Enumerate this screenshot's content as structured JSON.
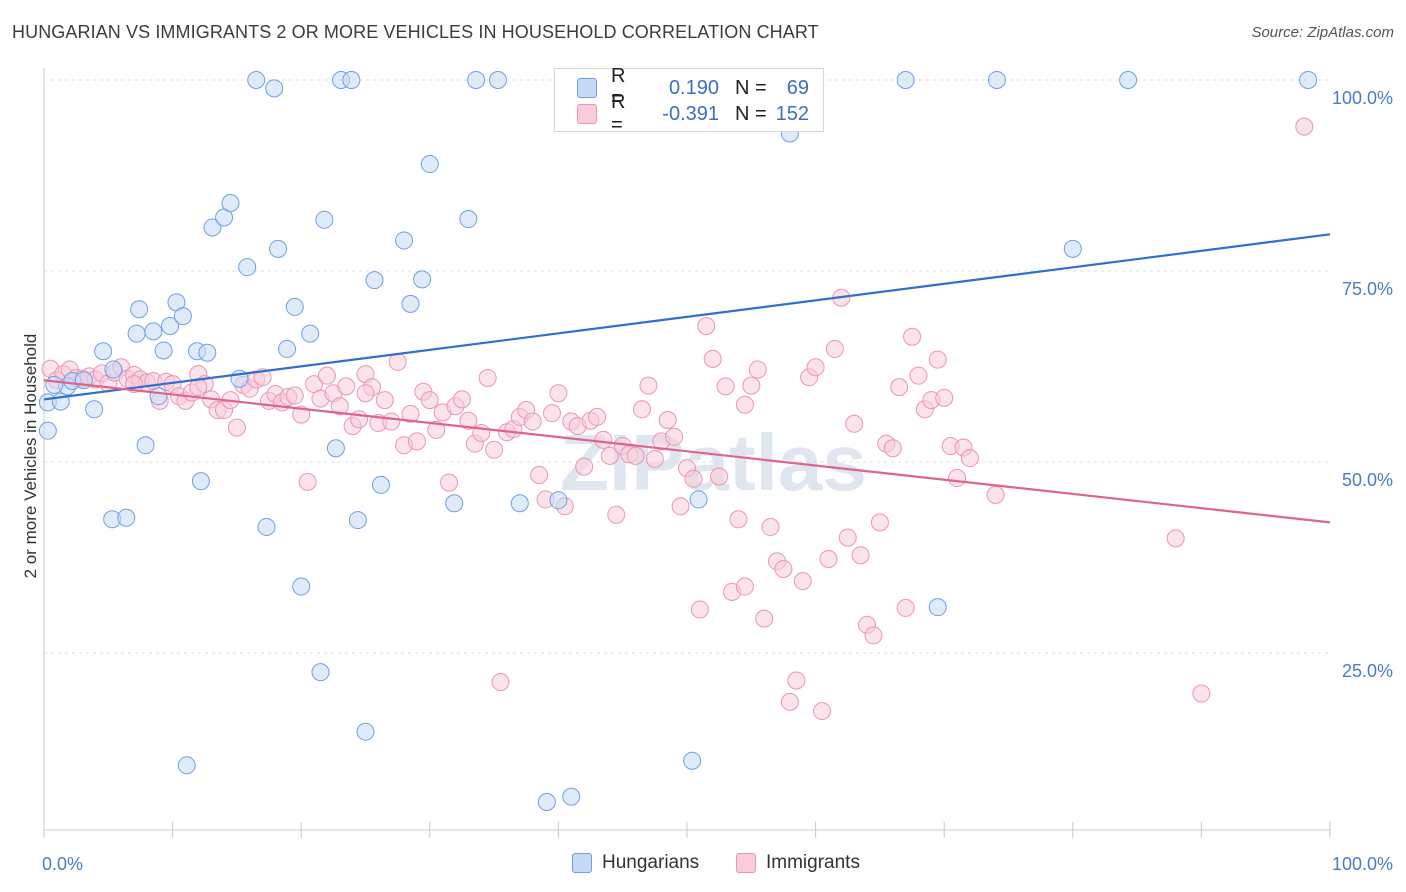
{
  "title": "HUNGARIAN VS IMMIGRANTS 2 OR MORE VEHICLES IN HOUSEHOLD CORRELATION CHART",
  "source": "Source: ZipAtlas.com",
  "watermark": "ZIPatlas",
  "colors": {
    "blue": "#6fa0e4",
    "blue_fill": "#c6daf5",
    "blue_line": "#2f6fcf",
    "pink": "#ee94b2",
    "pink_fill": "#f8ccdb",
    "pink_line": "#e0638f",
    "tick_text": "#4a7cc8"
  },
  "legend": {
    "rows": [
      {
        "r_label": "R =",
        "r_value": "0.190",
        "n_label": "N =",
        "n_value": "69"
      },
      {
        "r_label": "R =",
        "r_value": "-0.391",
        "n_label": "N =",
        "n_value": "152"
      }
    ]
  },
  "chart_data": {
    "type": "scatter",
    "title": "HUNGARIAN VS IMMIGRANTS 2 OR MORE VEHICLES IN HOUSEHOLD CORRELATION CHART",
    "xlabel": "",
    "ylabel": "2 or more Vehicles in Household",
    "xlim": [
      0,
      100
    ],
    "ylim": [
      0,
      100
    ],
    "x_tick_labels": [
      "0.0%",
      "100.0%"
    ],
    "y_tick_labels": [
      "100.0%",
      "75.0%",
      "50.0%",
      "25.0%"
    ],
    "y_ticks": [
      100,
      75,
      50,
      25
    ],
    "grid": true,
    "legend_position": "top-center",
    "series": [
      {
        "name": "Hungarians",
        "trend": [
          [
            0,
            58.2
          ],
          [
            100,
            79.8
          ]
        ],
        "points": [
          [
            0.3,
            57.8
          ],
          [
            0.3,
            54.1
          ],
          [
            1.3,
            57.9
          ],
          [
            1.8,
            59.9
          ],
          [
            2.2,
            60.6
          ],
          [
            3.9,
            56.9
          ],
          [
            4.6,
            64.5
          ],
          [
            5.4,
            62.1
          ],
          [
            5.3,
            42.5
          ],
          [
            6.4,
            42.7
          ],
          [
            7.2,
            66.8
          ],
          [
            7.4,
            70.0
          ],
          [
            7.9,
            52.2
          ],
          [
            8.5,
            67.1
          ],
          [
            8.9,
            58.6
          ],
          [
            9.3,
            64.6
          ],
          [
            9.8,
            67.8
          ],
          [
            10.3,
            70.9
          ],
          [
            10.8,
            69.1
          ],
          [
            11.1,
            10.3
          ],
          [
            11.9,
            64.5
          ],
          [
            12.2,
            47.5
          ],
          [
            12.7,
            64.3
          ],
          [
            13.1,
            80.7
          ],
          [
            14.0,
            82.0
          ],
          [
            14.5,
            83.9
          ],
          [
            15.2,
            60.9
          ],
          [
            15.8,
            75.5
          ],
          [
            16.5,
            100.0
          ],
          [
            17.3,
            41.5
          ],
          [
            17.9,
            98.9
          ],
          [
            18.2,
            77.9
          ],
          [
            18.9,
            64.8
          ],
          [
            19.5,
            70.3
          ],
          [
            20.0,
            33.7
          ],
          [
            20.7,
            66.8
          ],
          [
            21.5,
            22.5
          ],
          [
            21.8,
            81.7
          ],
          [
            22.7,
            51.8
          ],
          [
            23.1,
            100.0
          ],
          [
            23.9,
            100.0
          ],
          [
            24.4,
            42.4
          ],
          [
            25.0,
            14.7
          ],
          [
            25.7,
            73.8
          ],
          [
            26.2,
            47.0
          ],
          [
            28.0,
            79.0
          ],
          [
            28.5,
            70.7
          ],
          [
            29.4,
            73.9
          ],
          [
            30.0,
            89.0
          ],
          [
            31.9,
            44.6
          ],
          [
            33.0,
            81.8
          ],
          [
            33.6,
            100.0
          ],
          [
            35.3,
            100.0
          ],
          [
            37.0,
            44.6
          ],
          [
            39.1,
            5.5
          ],
          [
            40.0,
            45.0
          ],
          [
            41.0,
            6.2
          ],
          [
            50.4,
            10.9
          ],
          [
            50.9,
            45.1
          ],
          [
            52.0,
            100.0
          ],
          [
            67.0,
            100.0
          ],
          [
            69.5,
            31.0
          ],
          [
            74.1,
            100.0
          ],
          [
            80.0,
            77.9
          ],
          [
            84.3,
            100.0
          ],
          [
            98.3,
            100.0
          ],
          [
            0.8,
            60.1
          ],
          [
            3.1,
            60.7
          ],
          [
            58.0,
            93.0
          ]
        ]
      },
      {
        "name": "Immigrants",
        "trend": [
          [
            0,
            60.7
          ],
          [
            100,
            42.1
          ]
        ],
        "points": [
          [
            0.5,
            62.2
          ],
          [
            1.0,
            60.7
          ],
          [
            1.5,
            61.5
          ],
          [
            2.0,
            62.1
          ],
          [
            2.5,
            61.0
          ],
          [
            3.0,
            60.9
          ],
          [
            3.5,
            61.2
          ],
          [
            4.0,
            60.8
          ],
          [
            4.5,
            61.6
          ],
          [
            5.0,
            60.3
          ],
          [
            5.5,
            61.7
          ],
          [
            6.0,
            62.4
          ],
          [
            6.5,
            60.9
          ],
          [
            7.0,
            61.4
          ],
          [
            7.5,
            60.8
          ],
          [
            8.0,
            60.4
          ],
          [
            8.5,
            60.6
          ],
          [
            9.0,
            58.0
          ],
          [
            9.5,
            60.5
          ],
          [
            10.0,
            60.2
          ],
          [
            10.5,
            58.6
          ],
          [
            11.0,
            58.0
          ],
          [
            11.5,
            59.1
          ],
          [
            12.0,
            61.5
          ],
          [
            12.5,
            60.2
          ],
          [
            13.0,
            58.2
          ],
          [
            13.5,
            56.8
          ],
          [
            14.0,
            56.8
          ],
          [
            14.5,
            58.1
          ],
          [
            15.0,
            54.5
          ],
          [
            15.5,
            60.1
          ],
          [
            16.0,
            59.6
          ],
          [
            16.5,
            60.8
          ],
          [
            17.0,
            61.1
          ],
          [
            17.5,
            58.0
          ],
          [
            18.0,
            58.9
          ],
          [
            18.5,
            57.8
          ],
          [
            19.0,
            58.5
          ],
          [
            19.5,
            58.7
          ],
          [
            20.0,
            56.2
          ],
          [
            20.5,
            47.4
          ],
          [
            21.0,
            60.2
          ],
          [
            21.5,
            58.3
          ],
          [
            22.0,
            61.3
          ],
          [
            22.5,
            59.0
          ],
          [
            23.0,
            57.3
          ],
          [
            23.5,
            59.9
          ],
          [
            24.0,
            54.7
          ],
          [
            24.5,
            55.6
          ],
          [
            25.0,
            61.5
          ],
          [
            25.5,
            59.8
          ],
          [
            26.0,
            55.1
          ],
          [
            26.5,
            58.1
          ],
          [
            27.0,
            55.3
          ],
          [
            27.5,
            63.1
          ],
          [
            28.0,
            52.2
          ],
          [
            28.5,
            56.3
          ],
          [
            29.0,
            52.7
          ],
          [
            29.5,
            59.2
          ],
          [
            30.0,
            58.1
          ],
          [
            30.5,
            54.2
          ],
          [
            31.0,
            56.5
          ],
          [
            31.5,
            47.3
          ],
          [
            32.0,
            57.3
          ],
          [
            32.5,
            58.2
          ],
          [
            33.0,
            55.4
          ],
          [
            33.5,
            52.4
          ],
          [
            34.0,
            53.8
          ],
          [
            34.5,
            61.0
          ],
          [
            35.0,
            51.6
          ],
          [
            35.5,
            21.2
          ],
          [
            36.0,
            53.9
          ],
          [
            36.5,
            54.3
          ],
          [
            37.0,
            55.9
          ],
          [
            37.5,
            56.8
          ],
          [
            38.0,
            55.3
          ],
          [
            38.5,
            48.3
          ],
          [
            39.0,
            45.1
          ],
          [
            39.5,
            56.4
          ],
          [
            40.0,
            59.0
          ],
          [
            40.5,
            44.2
          ],
          [
            41.0,
            55.3
          ],
          [
            41.5,
            54.7
          ],
          [
            42.0,
            49.4
          ],
          [
            42.5,
            55.4
          ],
          [
            43.0,
            55.9
          ],
          [
            43.5,
            52.9
          ],
          [
            44.0,
            50.8
          ],
          [
            44.5,
            43.1
          ],
          [
            45.0,
            52.1
          ],
          [
            45.5,
            51.0
          ],
          [
            46.0,
            50.8
          ],
          [
            46.5,
            56.9
          ],
          [
            47.0,
            60.0
          ],
          [
            47.5,
            50.4
          ],
          [
            48.0,
            52.7
          ],
          [
            48.5,
            55.5
          ],
          [
            49.0,
            53.3
          ],
          [
            49.5,
            44.2
          ],
          [
            50.0,
            49.2
          ],
          [
            50.5,
            47.8
          ],
          [
            51.0,
            30.7
          ],
          [
            51.5,
            67.8
          ],
          [
            52.0,
            63.5
          ],
          [
            52.5,
            48.1
          ],
          [
            53.0,
            59.9
          ],
          [
            53.5,
            33.0
          ],
          [
            54.0,
            42.5
          ],
          [
            54.5,
            33.7
          ],
          [
            55.0,
            60.0
          ],
          [
            55.5,
            62.1
          ],
          [
            56.0,
            29.5
          ],
          [
            56.5,
            41.5
          ],
          [
            57.0,
            37.0
          ],
          [
            57.5,
            36.0
          ],
          [
            58.0,
            18.6
          ],
          [
            58.5,
            21.4
          ],
          [
            59.0,
            34.4
          ],
          [
            59.5,
            61.1
          ],
          [
            60.0,
            62.4
          ],
          [
            60.5,
            17.4
          ],
          [
            61.0,
            37.3
          ],
          [
            61.5,
            64.8
          ],
          [
            62.0,
            71.5
          ],
          [
            62.5,
            40.1
          ],
          [
            63.0,
            55.0
          ],
          [
            63.5,
            37.8
          ],
          [
            64.0,
            28.7
          ],
          [
            64.5,
            27.3
          ],
          [
            65.0,
            42.1
          ],
          [
            65.5,
            52.4
          ],
          [
            66.0,
            51.8
          ],
          [
            66.5,
            59.8
          ],
          [
            67.0,
            30.9
          ],
          [
            67.5,
            66.4
          ],
          [
            68.0,
            61.3
          ],
          [
            68.5,
            56.9
          ],
          [
            69.0,
            58.1
          ],
          [
            69.5,
            63.4
          ],
          [
            70.0,
            58.4
          ],
          [
            70.5,
            52.1
          ],
          [
            71.0,
            47.9
          ],
          [
            71.5,
            51.9
          ],
          [
            72.0,
            50.5
          ],
          [
            74.0,
            45.7
          ],
          [
            88.0,
            40.0
          ],
          [
            90.0,
            19.7
          ],
          [
            98.0,
            93.9
          ],
          [
            54.5,
            57.5
          ],
          [
            25.0,
            59.0
          ],
          [
            12.0,
            59.8
          ],
          [
            7.0,
            60.2
          ]
        ]
      }
    ]
  },
  "bottom_legend": {
    "items": [
      {
        "label": "Hungarians"
      },
      {
        "label": "Immigrants"
      }
    ]
  }
}
